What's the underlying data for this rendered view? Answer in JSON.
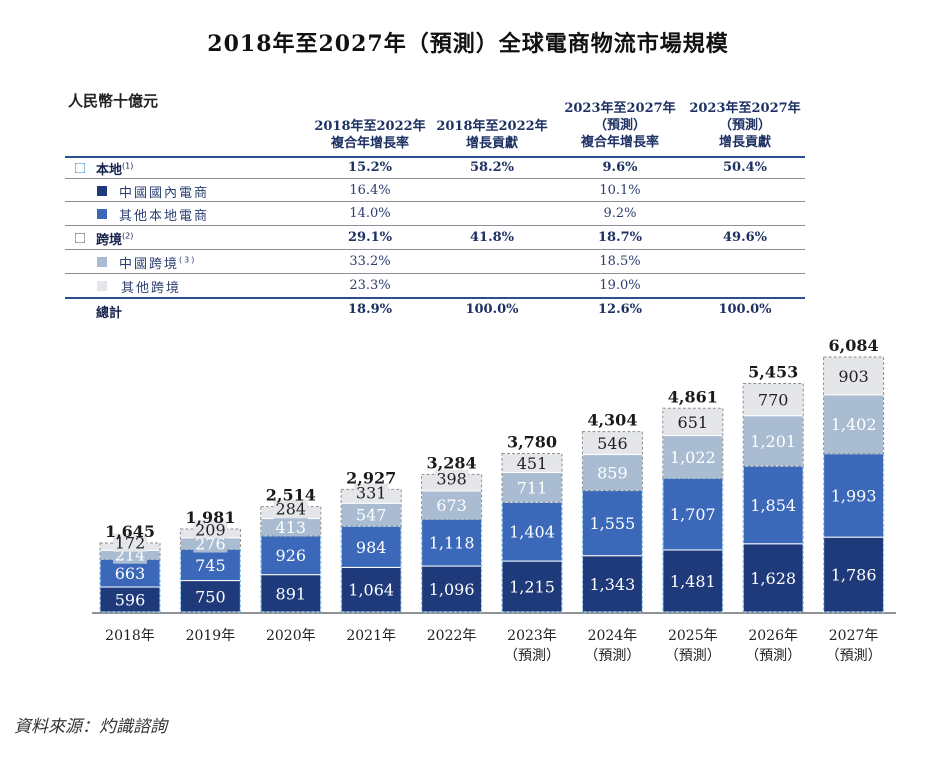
{
  "title": "2018年至2027年（預測）全球電商物流市場規模",
  "table": {
    "unit": "人民幣十億元",
    "headers": [
      [
        "2018年至2022年",
        "複合年增長率"
      ],
      [
        "2018年至2022年",
        "增長貢獻"
      ],
      [
        "2023年至2027年",
        "（預測）",
        "複合年增長率"
      ],
      [
        "2023年至2027年",
        "（預測）",
        "增長貢獻"
      ]
    ],
    "rows": [
      {
        "label": "本地",
        "note": "(1)",
        "type": "group",
        "swatch": "dashed-blue",
        "values": [
          "15.2%",
          "58.2%",
          "9.6%",
          "50.4%"
        ]
      },
      {
        "label": "中國國內電商",
        "note": "",
        "type": "sub",
        "swatch": "#1f3a7a",
        "values": [
          "16.4%",
          "",
          "10.1%",
          ""
        ]
      },
      {
        "label": "其他本地電商",
        "note": "",
        "type": "sub",
        "swatch": "#3b68b8",
        "values": [
          "14.0%",
          "",
          "9.2%",
          ""
        ]
      },
      {
        "label": "跨境",
        "note": "(2)",
        "type": "group",
        "swatch": "dashed-gray",
        "values": [
          "29.1%",
          "41.8%",
          "18.7%",
          "49.6%"
        ]
      },
      {
        "label": "中國跨境",
        "note": "(3)",
        "type": "sub",
        "swatch": "#a9bcd2",
        "values": [
          "33.2%",
          "",
          "18.5%",
          ""
        ]
      },
      {
        "label": "其他跨境",
        "note": "",
        "type": "sub",
        "swatch": "#e4e6e9",
        "values": [
          "23.3%",
          "",
          "19.0%",
          ""
        ]
      },
      {
        "label": "總計",
        "note": "",
        "type": "total",
        "swatch": "",
        "values": [
          "18.9%",
          "100.0%",
          "12.6%",
          "100.0%"
        ]
      }
    ]
  },
  "chart_data": {
    "type": "bar",
    "stacked": true,
    "title": "2018年至2027年（預測）全球電商物流市場規模",
    "ylabel": "人民幣十億元",
    "xlabel": "",
    "categories": [
      "2018年",
      "2019年",
      "2020年",
      "2021年",
      "2022年",
      "2023年",
      "2024年",
      "2025年",
      "2026年",
      "2027年"
    ],
    "category_sublabels": [
      "",
      "",
      "",
      "",
      "",
      "（預測）",
      "（預測）",
      "（預測）",
      "（預測）",
      "（預測）"
    ],
    "series": [
      {
        "name": "中國國內電商",
        "color": "#1f3a7a",
        "text_color": "#ffffff",
        "values": [
          596,
          750,
          891,
          1064,
          1096,
          1215,
          1343,
          1481,
          1628,
          1786
        ]
      },
      {
        "name": "其他本地電商",
        "color": "#3b68b8",
        "text_color": "#ffffff",
        "values": [
          663,
          745,
          926,
          984,
          1118,
          1404,
          1555,
          1707,
          1854,
          1993
        ]
      },
      {
        "name": "中國跨境",
        "color": "#a9bcd2",
        "text_color": "#ffffff",
        "values": [
          214,
          276,
          413,
          547,
          673,
          711,
          859,
          1022,
          1201,
          1402
        ]
      },
      {
        "name": "其他跨境",
        "color": "#e4e6e9",
        "text_color": "#222222",
        "values": [
          172,
          209,
          284,
          331,
          398,
          451,
          546,
          651,
          770,
          903
        ]
      }
    ],
    "totals": [
      1645,
      1981,
      2514,
      2927,
      3284,
      3780,
      4304,
      4861,
      5453,
      6084
    ],
    "value_labels": [
      [
        "596",
        "750",
        "891",
        "1,064",
        "1,096",
        "1,215",
        "1,343",
        "1,481",
        "1,628",
        "1,786"
      ],
      [
        "663",
        "745",
        "926",
        "984",
        "1,118",
        "1,404",
        "1,555",
        "1,707",
        "1,854",
        "1,993"
      ],
      [
        "214",
        "276",
        "413",
        "547",
        "673",
        "711",
        "859",
        "1,022",
        "1,201",
        "1,402"
      ],
      [
        "172",
        "209",
        "284",
        "331",
        "398",
        "451",
        "546",
        "651",
        "770",
        "903"
      ]
    ],
    "total_labels": [
      "1,645",
      "1,981",
      "2,514",
      "2,927",
      "3,284",
      "3,780",
      "4,304",
      "4,861",
      "5,453",
      "6,084"
    ],
    "groups": [
      {
        "name": "本地",
        "series": [
          "中國國內電商",
          "其他本地電商"
        ],
        "outline": "dashed-blue"
      },
      {
        "name": "跨境",
        "series": [
          "中國跨境",
          "其他跨境"
        ],
        "outline": "dashed-gray"
      }
    ],
    "ylim": [
      0,
      6084
    ],
    "grid": false,
    "legend": "top-table"
  },
  "source": "資料來源：灼識諮詢"
}
